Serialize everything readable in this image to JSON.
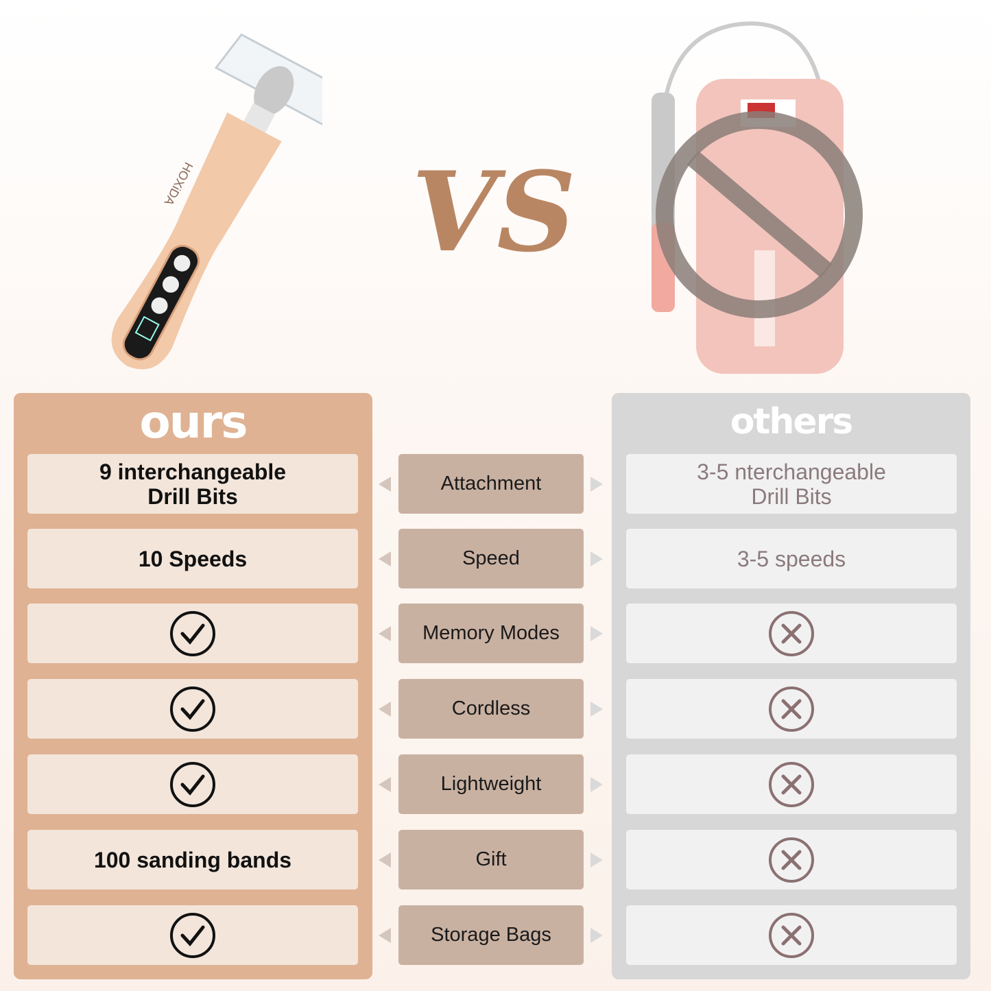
{
  "brand": "HOXiDA",
  "vs_label": "VS",
  "ours_title": "ours",
  "others_title": "others",
  "colors": {
    "ours_panel": "#dfb293",
    "ours_cell": "#f3e5da",
    "feature_box": "#c9b1a2",
    "others_panel": "#d7d7d7",
    "others_cell": "#f1f1f1",
    "no_sign": "#8a7e78"
  },
  "rows": [
    {
      "feature": "Attachment",
      "ours": {
        "line1": "9 interchangeable",
        "line2": "Drill Bits"
      },
      "others": {
        "line1": "3-5 nterchangeable",
        "line2": "Drill Bits"
      }
    },
    {
      "feature": "Speed",
      "ours": {
        "line1": "10 Speeds"
      },
      "others": {
        "line1": "3-5 speeds"
      }
    },
    {
      "feature": "Memory Modes",
      "ours": {
        "icon": "check-circle-icon"
      },
      "others": {
        "icon": "x-circle-icon"
      }
    },
    {
      "feature": "Cordless",
      "ours": {
        "icon": "check-circle-icon"
      },
      "others": {
        "icon": "x-circle-icon"
      }
    },
    {
      "feature": "Lightweight",
      "ours": {
        "icon": "check-circle-icon"
      },
      "others": {
        "icon": "x-circle-icon"
      }
    },
    {
      "feature": "Gift",
      "ours": {
        "line1": "100 sanding bands"
      },
      "others": {
        "icon": "x-circle-icon"
      }
    },
    {
      "feature": "Storage Bags",
      "ours": {
        "icon": "check-circle-icon"
      },
      "others": {
        "icon": "x-circle-icon"
      }
    }
  ]
}
